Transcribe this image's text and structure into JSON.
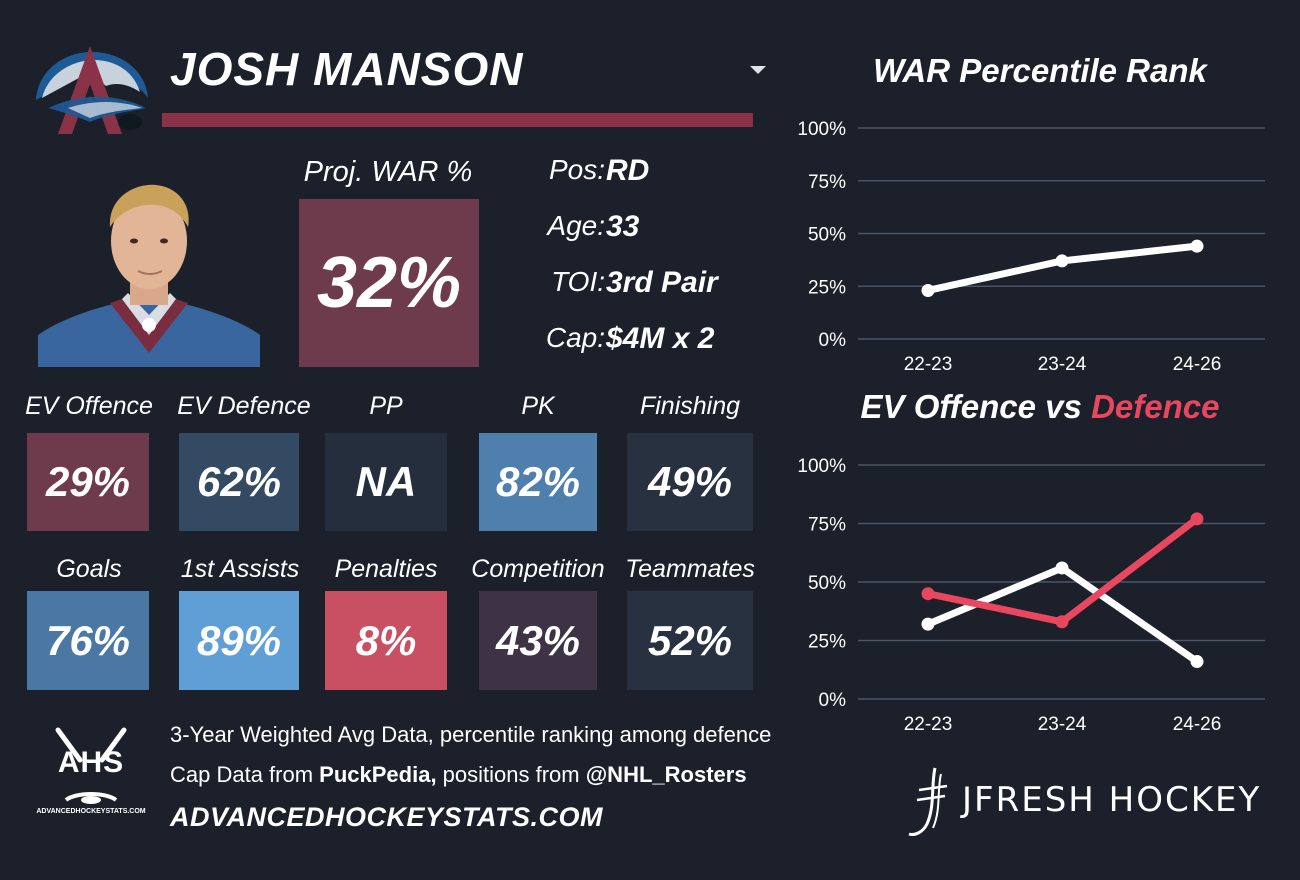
{
  "player": {
    "name": "JOSH MANSON"
  },
  "proj_war": {
    "label": "Proj. WAR %",
    "value": "32%"
  },
  "info": [
    {
      "label": "Pos:",
      "value": "RD"
    },
    {
      "label": "Age:",
      "value": "33"
    },
    {
      "label": "TOI:",
      "value": "3rd Pair"
    },
    {
      "label": "Cap:",
      "value": "$4M x 2"
    }
  ],
  "stats_row1": [
    {
      "label": "EV Offence",
      "value": "29%",
      "color": "#6e3b4c"
    },
    {
      "label": "EV Defence",
      "value": "62%",
      "color": "#344a62"
    },
    {
      "label": "PP",
      "value": "NA",
      "color": "#252e3c"
    },
    {
      "label": "PK",
      "value": "82%",
      "color": "#4f7fad"
    },
    {
      "label": "Finishing",
      "value": "49%",
      "color": "#283140"
    }
  ],
  "stats_row2": [
    {
      "label": "Goals",
      "value": "76%",
      "color": "#4a77a3"
    },
    {
      "label": "1st Assists",
      "value": "89%",
      "color": "#5f9fd6"
    },
    {
      "label": "Penalties",
      "value": "8%",
      "color": "#c94f63"
    },
    {
      "label": "Competition",
      "value": "43%",
      "color": "#3d3344"
    },
    {
      "label": "Teammates",
      "value": "52%",
      "color": "#283140"
    }
  ],
  "colors": {
    "background": "#1b202a",
    "brand_burgundy": "#8a3348",
    "proj_box": "#6e3b4c",
    "offence_line": "#ffffff",
    "defence_line": "#e8475f",
    "gridline": "#4a5568"
  },
  "icons": {
    "team_logo": "colorado-avalanche-logo-icon",
    "headshot": "player-headshot-icon",
    "ahs": "ahs-logo-icon",
    "jfresh": "jfresh-logo-icon"
  },
  "chart_data": [
    {
      "type": "line",
      "title": "WAR Percentile Rank",
      "categories": [
        "22-23",
        "23-24",
        "24-26"
      ],
      "series": [
        {
          "values": [
            23,
            37,
            44
          ],
          "color": "#ffffff"
        }
      ],
      "y_ticks": [
        "100%",
        "75%",
        "50%",
        "25%",
        "0%"
      ],
      "ylim": [
        0,
        100
      ],
      "grid": true
    },
    {
      "type": "line",
      "title_part1": "EV Offence vs ",
      "title_part2": "Defence",
      "categories": [
        "22-23",
        "23-24",
        "24-26"
      ],
      "series": [
        {
          "values": [
            32,
            56,
            16
          ],
          "color": "#ffffff"
        },
        {
          "values": [
            45,
            33,
            77
          ],
          "color": "#e8475f"
        }
      ],
      "y_ticks": [
        "100%",
        "75%",
        "50%",
        "25%",
        "0%"
      ],
      "ylim": [
        0,
        100
      ],
      "grid": true
    }
  ],
  "footer": {
    "line1": "3-Year Weighted Avg Data, percentile ranking among defence",
    "line2_a": "Cap Data from ",
    "line2_b": "PuckPedia,",
    "line2_c": " positions from ",
    "line2_d": "@NHL_Rosters",
    "site": "ADVANCEDHOCKEYSTATS.COM",
    "ahs_logo_text": "AHS",
    "ahs_small_text": "ADVANCEDHOCKEYSTATS.COM",
    "brand": "JFRESH HOCKEY"
  }
}
